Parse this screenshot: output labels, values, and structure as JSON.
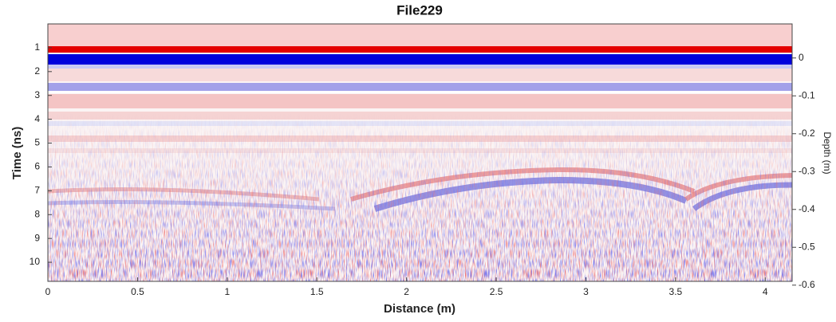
{
  "chart_data": {
    "type": "radargram",
    "title": "File229",
    "x_label": "Distance (m)",
    "y_label": "Time (ns)",
    "y2_label": "Depth (m)",
    "xlim": [
      0,
      4.15
    ],
    "xticks": [
      0,
      0.5,
      1,
      1.5,
      2,
      2.5,
      3,
      3.5,
      4
    ],
    "ylim": [
      10.8,
      0
    ],
    "yticks": [
      1,
      2,
      3,
      4,
      5,
      6,
      7,
      8,
      9,
      10
    ],
    "y2lim": [
      -0.59,
      0.09
    ],
    "y2ticks": [
      0,
      -0.1,
      -0.2,
      -0.3,
      -0.4,
      -0.5,
      -0.6
    ]
  }
}
